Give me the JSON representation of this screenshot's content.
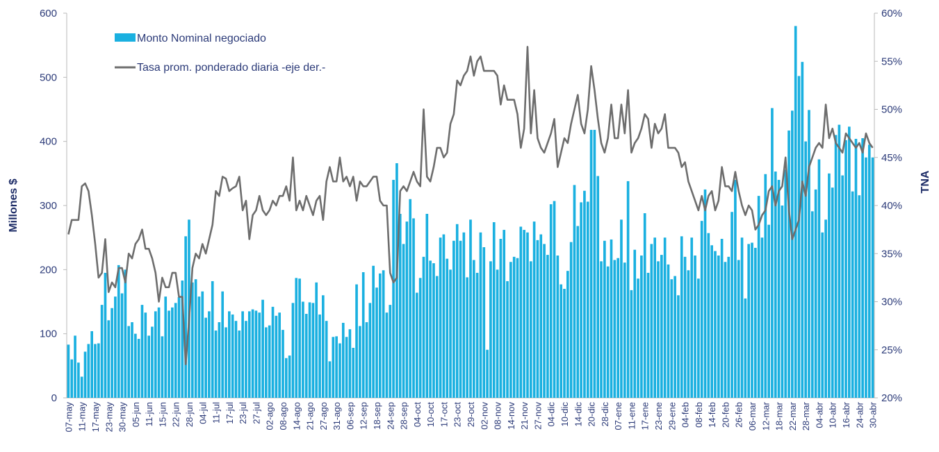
{
  "chart_data": {
    "type": "bar_line",
    "y_label": "Millones $",
    "y2_label": "TNA",
    "ylim": [
      0,
      600
    ],
    "yticks": [
      0,
      100,
      200,
      300,
      400,
      500,
      600
    ],
    "y2lim": [
      20,
      60
    ],
    "y2ticks": [
      {
        "value": 20,
        "label": "20%"
      },
      {
        "value": 25,
        "label": "25%"
      },
      {
        "value": 30,
        "label": "30%"
      },
      {
        "value": 35,
        "label": "35%"
      },
      {
        "value": 40,
        "label": "40%"
      },
      {
        "value": 45,
        "label": "45%"
      },
      {
        "value": 50,
        "label": "50%"
      },
      {
        "value": 55,
        "label": "55%"
      },
      {
        "value": 60,
        "label": "60%"
      }
    ],
    "legend": "top-left",
    "categories": [
      "07-may",
      null,
      null,
      null,
      "11-may",
      null,
      null,
      null,
      "17-may",
      null,
      null,
      null,
      "23-may",
      null,
      null,
      null,
      "30-may",
      null,
      null,
      null,
      "05-jun",
      null,
      null,
      null,
      "11-jun",
      null,
      null,
      null,
      "15-jun",
      null,
      null,
      null,
      "22-jun",
      null,
      null,
      null,
      "28-jun",
      null,
      null,
      null,
      "04-jul",
      null,
      null,
      null,
      "11-jul",
      null,
      null,
      null,
      "17-jul",
      null,
      null,
      null,
      "23-jul",
      null,
      null,
      null,
      "27-jul",
      null,
      null,
      null,
      "02-ago",
      null,
      null,
      null,
      "08-ago",
      null,
      null,
      null,
      "14-ago",
      null,
      null,
      null,
      "21-ago",
      null,
      null,
      null,
      "27-ago",
      null,
      null,
      null,
      "31-ago",
      null,
      null,
      null,
      "06-sep",
      null,
      null,
      null,
      "12-sep",
      null,
      null,
      null,
      "18-sep",
      null,
      null,
      null,
      "24-sep",
      null,
      null,
      null,
      "28-sep",
      null,
      null,
      null,
      "04-oct",
      null,
      null,
      null,
      "10-oct",
      null,
      null,
      null,
      "17-oct",
      null,
      null,
      null,
      "23-oct",
      null,
      null,
      null,
      "29-oct",
      null,
      null,
      null,
      "02-nov",
      null,
      null,
      null,
      "08-nov",
      null,
      null,
      null,
      "14-nov",
      null,
      null,
      null,
      "21-nov",
      null,
      null,
      null,
      "27-nov",
      null,
      null,
      null,
      "04-dic",
      null,
      null,
      null,
      "10-dic",
      null,
      null,
      null,
      "14-dic",
      null,
      null,
      null,
      "20-dic",
      null,
      null,
      null,
      "28-dic",
      null,
      null,
      null,
      "07-ene",
      null,
      null,
      null,
      "11-ene",
      null,
      null,
      null,
      "17-ene",
      null,
      null,
      null,
      "23-ene",
      null,
      null,
      null,
      "29-ene",
      null,
      null,
      null,
      "04-feb",
      null,
      null,
      null,
      "08-feb",
      null,
      null,
      null,
      "14-feb",
      null,
      null,
      null,
      "20-feb",
      null,
      null,
      null,
      "26-feb",
      null,
      null,
      null,
      "06-mar",
      null,
      null,
      null,
      "12-mar",
      null,
      null,
      null,
      "18-mar",
      null,
      null,
      null,
      "22-mar",
      null,
      null,
      null,
      "28-mar",
      null,
      null,
      null,
      "04-abr",
      null,
      null,
      null,
      "10-abr",
      null,
      null,
      null,
      "16-abr",
      null,
      null,
      null,
      "24-abr",
      null,
      null,
      null,
      "30-abr"
    ],
    "series": [
      {
        "name": "Monto Nominal negociado",
        "kind": "bar",
        "color": "#1ab0e0",
        "values": [
          83,
          60,
          97,
          55,
          33,
          72,
          84,
          104,
          84,
          85,
          145,
          195,
          121,
          140,
          158,
          207,
          163,
          200,
          112,
          118,
          100,
          92,
          145,
          133,
          97,
          111,
          135,
          141,
          96,
          158,
          136,
          141,
          148,
          157,
          183,
          252,
          278,
          180,
          185,
          158,
          166,
          125,
          135,
          182,
          105,
          118,
          166,
          110,
          135,
          130,
          120,
          105,
          135,
          120,
          135,
          138,
          136,
          133,
          153,
          110,
          113,
          142,
          128,
          133,
          106,
          62,
          66,
          148,
          187,
          186,
          150,
          131,
          149,
          148,
          180,
          130,
          160,
          120,
          57,
          95,
          96,
          85,
          117,
          95,
          107,
          78,
          177,
          112,
          196,
          118,
          148,
          206,
          172,
          194,
          199,
          133,
          145,
          340,
          366,
          287,
          240,
          275,
          310,
          280,
          164,
          187,
          220,
          287,
          214,
          210,
          190,
          250,
          255,
          217,
          200,
          245,
          271,
          245,
          258,
          188,
          278,
          215,
          195,
          258,
          235,
          75,
          213,
          274,
          200,
          248,
          262,
          182,
          212,
          220,
          218,
          267,
          262,
          258,
          213,
          275,
          246,
          255,
          240,
          223,
          302,
          307,
          222,
          177,
          170,
          198,
          243,
          332,
          268,
          305,
          323,
          306,
          418,
          418,
          346,
          213,
          245,
          205,
          247,
          215,
          218,
          278,
          211,
          338,
          168,
          231,
          186,
          222,
          288,
          195,
          240,
          250,
          213,
          223,
          250,
          208,
          185,
          190,
          160,
          252,
          220,
          199,
          250,
          222,
          186,
          276,
          325,
          257,
          238,
          229,
          222,
          248,
          212,
          220,
          290,
          340,
          215,
          250,
          155,
          240,
          242,
          234,
          315,
          250,
          349,
          270,
          452,
          353,
          340,
          300,
          356,
          417,
          448,
          580,
          502,
          524,
          400,
          449,
          291,
          325,
          372,
          258,
          278,
          350,
          328,
          410,
          426,
          347,
          402,
          423,
          322,
          404,
          316,
          405,
          375,
          395,
          375
        ]
      },
      {
        "name": "Tasa prom. ponderado diaria -eje der.-",
        "kind": "line",
        "axis": "y2",
        "color": "#6d6d6d",
        "values": [
          37,
          38.5,
          38.5,
          38.5,
          42,
          42.3,
          41.5,
          39,
          36,
          32.5,
          33,
          36.5,
          31,
          32,
          31.5,
          33.5,
          33.5,
          32,
          35,
          34.5,
          36,
          36.5,
          37.5,
          35.5,
          35.5,
          34.5,
          33,
          30,
          32.5,
          31.5,
          31.5,
          33,
          33,
          30.5,
          30.5,
          23.5,
          28,
          33.5,
          35,
          34.5,
          36,
          35,
          36.5,
          38,
          41.5,
          41,
          43,
          42.8,
          41.5,
          41.8,
          42,
          43,
          39.5,
          40.5,
          36.5,
          39,
          39.5,
          41,
          39.5,
          39,
          39.5,
          40.5,
          40,
          41,
          41,
          42,
          40.5,
          45,
          39.5,
          40.5,
          39.5,
          41,
          40,
          39,
          40.5,
          41,
          38.5,
          42.5,
          44,
          42.5,
          42.5,
          45,
          42.5,
          43,
          42,
          43,
          40.5,
          42.5,
          42,
          42,
          42.5,
          43,
          43,
          40.5,
          40,
          40,
          33,
          32,
          32.5,
          41.5,
          42,
          41.5,
          42.5,
          43.5,
          42.5,
          42,
          50,
          43,
          42.5,
          44,
          46,
          46,
          45,
          45.5,
          48.5,
          49.5,
          53,
          52.5,
          53.5,
          54,
          55.5,
          53.5,
          55,
          55.5,
          54,
          54,
          54,
          54,
          53.5,
          50.5,
          52.5,
          51,
          51,
          51,
          49.5,
          46,
          48,
          56.5,
          47.5,
          52,
          47,
          46,
          45.5,
          46.5,
          47.5,
          49,
          44,
          45.5,
          47,
          46.5,
          48.5,
          50,
          51.5,
          48.5,
          47.5,
          50,
          54.5,
          52,
          49,
          46.5,
          45.5,
          47,
          50.5,
          47,
          47,
          50.5,
          47.5,
          52,
          45.5,
          46.5,
          47,
          48,
          49.5,
          49,
          46,
          48.5,
          47.5,
          48,
          49.5,
          46,
          46,
          46,
          45.5,
          44,
          44.5,
          42.5,
          41.5,
          40.5,
          39.5,
          41,
          39.5,
          41,
          41.5,
          39.5,
          40.5,
          44,
          42,
          42,
          41.5,
          43.5,
          41.5,
          40,
          39,
          40,
          39.5,
          37.5,
          38,
          39,
          39.5,
          41.5,
          42,
          40,
          41.5,
          42,
          45,
          39.5,
          36.5,
          37.5,
          38.5,
          42.5,
          41,
          44,
          45,
          46,
          46.5,
          46,
          50.5,
          47,
          48,
          46.5,
          46,
          45.5,
          47.5,
          47,
          46.5,
          46,
          46.5,
          45.5,
          47.5,
          46.5,
          46
        ]
      }
    ]
  }
}
